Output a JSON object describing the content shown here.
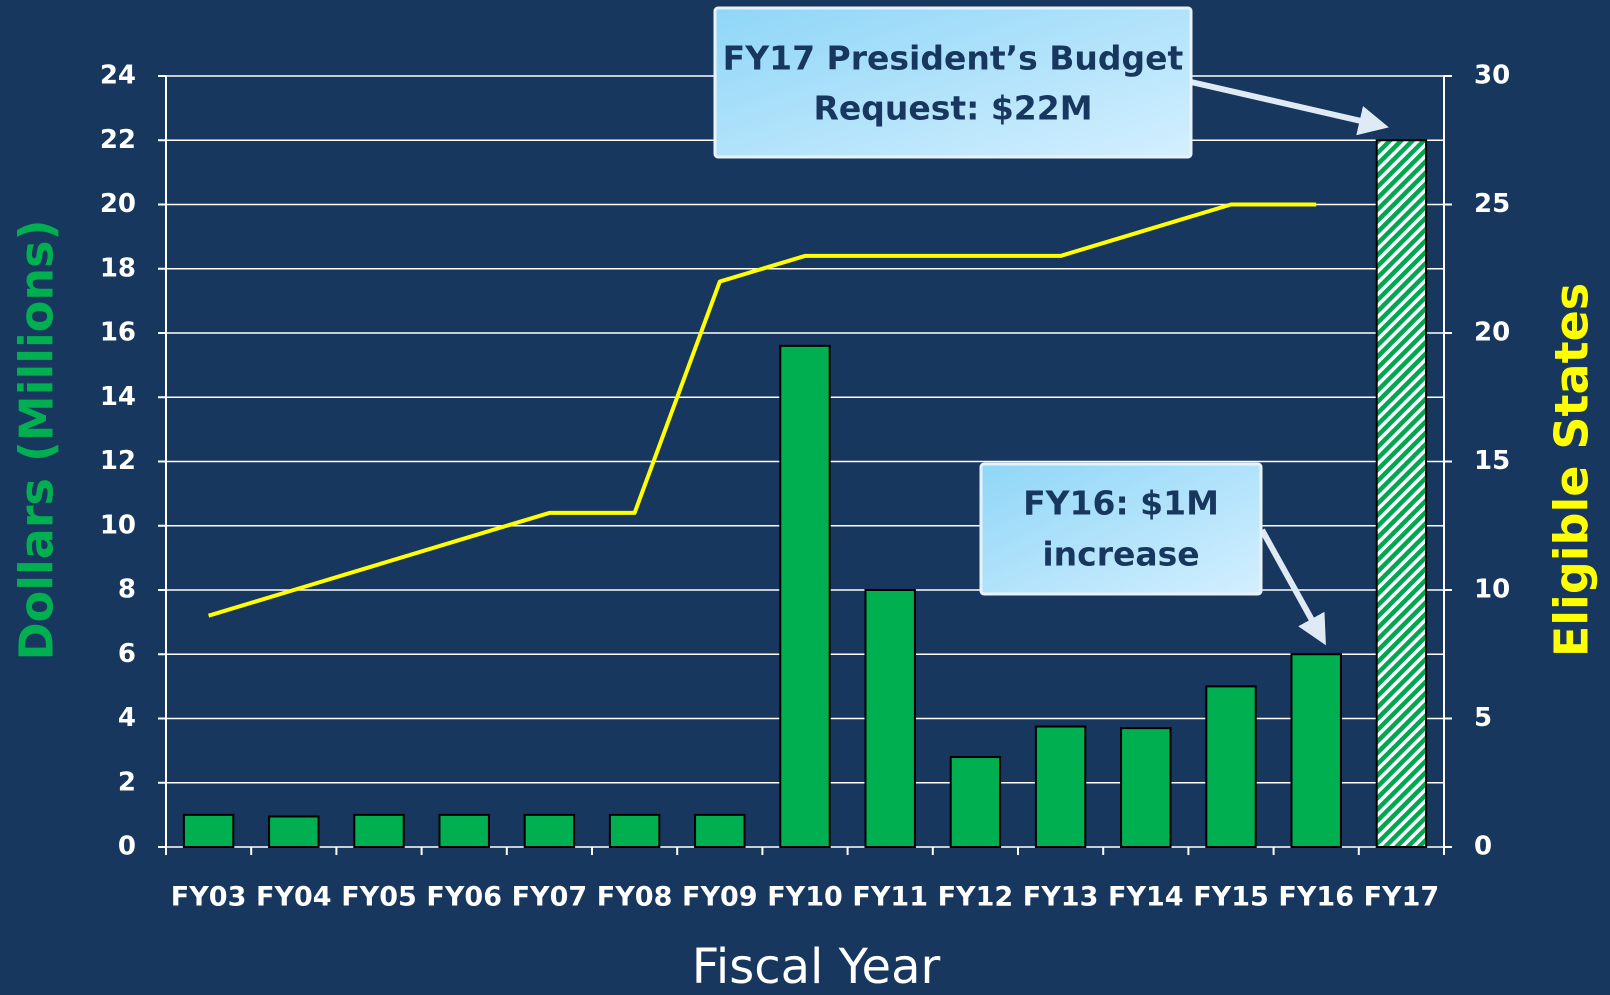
{
  "chart_data": {
    "type": "bar",
    "x_label": "Fiscal Year",
    "y_label": "Dollars (Millions)",
    "y2_label": "Eligible States",
    "categories": [
      "FY03",
      "FY04",
      "FY05",
      "FY06",
      "FY07",
      "FY08",
      "FY09",
      "FY10",
      "FY11",
      "FY12",
      "FY13",
      "FY14",
      "FY15",
      "FY16",
      "FY17"
    ],
    "series": [
      {
        "type": "bar",
        "color": "#00b050",
        "values": [
          1.0,
          0.95,
          1.0,
          1.0,
          1.0,
          1.0,
          1.0,
          15.6,
          8.0,
          2.8,
          3.75,
          3.7,
          5.0,
          6.0,
          22.0
        ],
        "hatched": [
          14
        ]
      },
      {
        "type": "line",
        "axis": "y2",
        "color": "#ffff00",
        "values": [
          9,
          10,
          11,
          12,
          13,
          13,
          22,
          23,
          23,
          23,
          23,
          24,
          25,
          25,
          null
        ]
      }
    ],
    "ylim": [
      0,
      24
    ],
    "yticks": [
      0,
      2,
      4,
      6,
      8,
      10,
      12,
      14,
      16,
      18,
      20,
      22,
      24
    ],
    "y2lim": [
      0,
      30
    ],
    "y2ticks": [
      0,
      5,
      10,
      15,
      20,
      25,
      30
    ],
    "grid": true,
    "annotations": [
      {
        "lines": [
          "FY17 President’s Budget",
          "Request: $22M"
        ]
      },
      {
        "lines": [
          "FY16: $1M",
          "increase"
        ]
      }
    ]
  }
}
